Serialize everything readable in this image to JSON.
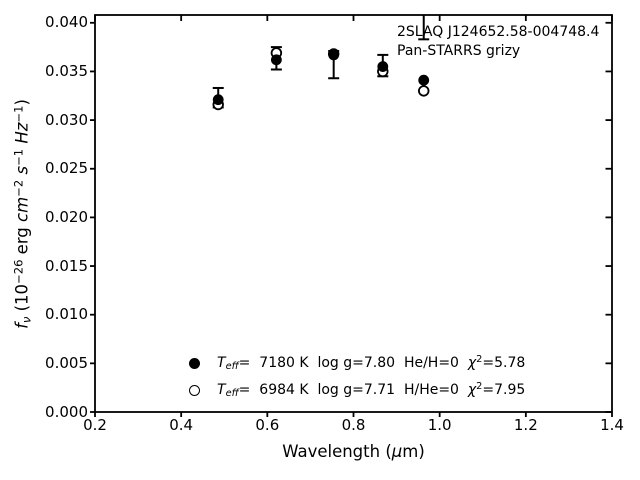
{
  "figure": {
    "background": "#ffffff",
    "foreground": "#000000"
  },
  "annotation": {
    "line1": "2SLAQ J124652.58-004748.4",
    "line2": "Pan-STARRS grizy"
  },
  "axes": {
    "xlabel_segments": [
      {
        "t": "Wavelength ("
      },
      {
        "t": "μ",
        "i": true
      },
      {
        "t": "m)"
      }
    ],
    "ylabel_segments": [
      {
        "t": "f",
        "i": true
      },
      {
        "t": "ν",
        "i": true,
        "pos": "sub"
      },
      {
        "t": " (10"
      },
      {
        "t": "−26",
        "pos": "sup"
      },
      {
        "t": " erg "
      },
      {
        "t": "cm",
        "i": true
      },
      {
        "t": "−2",
        "pos": "sup"
      },
      {
        "t": " "
      },
      {
        "t": "s",
        "i": true
      },
      {
        "t": "−1",
        "pos": "sup"
      },
      {
        "t": " "
      },
      {
        "t": "Hz",
        "i": true
      },
      {
        "t": "−1",
        "pos": "sup"
      },
      {
        "t": ")"
      }
    ]
  },
  "legend": {
    "entries": [
      {
        "marker": "filled-circle-icon",
        "segments": [
          {
            "t": "T",
            "i": true
          },
          {
            "t": "eff",
            "i": true,
            "pos": "sub"
          },
          {
            "t": "=  7180 K  log g=7.80  He/H=0  "
          },
          {
            "t": "χ",
            "i": true
          },
          {
            "t": "2",
            "pos": "sup"
          },
          {
            "t": "=5.78"
          }
        ]
      },
      {
        "marker": "open-circle-icon",
        "segments": [
          {
            "t": "T",
            "i": true
          },
          {
            "t": "eff",
            "i": true,
            "pos": "sub"
          },
          {
            "t": "=  6984 K  log g=7.71  H/He=0  "
          },
          {
            "t": "χ",
            "i": true
          },
          {
            "t": "2",
            "pos": "sup"
          },
          {
            "t": "=7.95"
          }
        ]
      }
    ]
  },
  "chart_data": {
    "type": "scatter",
    "annotation_lines": [
      "2SLAQ J124652.58-004748.4",
      "Pan-STARRS grizy"
    ],
    "xlabel": "Wavelength (μm)",
    "ylabel": "fν (10−26 erg cm−2 s−1 Hz−1)",
    "xlim": [
      0.2,
      1.4
    ],
    "ylim": [
      0.0,
      0.0408
    ],
    "grid": false,
    "legend_frame": false,
    "x_ticks": [
      0.2,
      0.4,
      0.6,
      0.8,
      1.0,
      1.2,
      1.4
    ],
    "x_tick_labels": [
      "0.2",
      "0.4",
      "0.6",
      "0.8",
      "1.0",
      "1.2",
      "1.4"
    ],
    "y_ticks": [
      0.0,
      0.005,
      0.01,
      0.015,
      0.02,
      0.025,
      0.03,
      0.035,
      0.04
    ],
    "y_tick_labels": [
      "0.000",
      "0.005",
      "0.010",
      "0.015",
      "0.020",
      "0.025",
      "0.030",
      "0.035",
      "0.040"
    ],
    "bands": [
      "g",
      "r",
      "i",
      "z",
      "y"
    ],
    "x": [
      0.486,
      0.621,
      0.754,
      0.868,
      0.963
    ],
    "observed_error_bars": [
      {
        "band": "g",
        "x": 0.486,
        "lo": 0.0313,
        "hi": 0.0333
      },
      {
        "band": "r",
        "x": 0.621,
        "lo": 0.0352,
        "hi": 0.0375
      },
      {
        "band": "i",
        "x": 0.754,
        "lo": 0.0343,
        "hi": 0.0371
      },
      {
        "band": "z",
        "x": 0.868,
        "lo": 0.0345,
        "hi": 0.0367
      },
      {
        "band": "y",
        "x": 0.963,
        "lo": 0.0383,
        "hi": 0.0412,
        "clipped_top": true
      }
    ],
    "series": [
      {
        "name": "Teff=  7180 K  log g=7.80  He/H=0  χ2=5.78",
        "marker": "filled-circle",
        "color": "#000000",
        "values": [
          0.0321,
          0.0362,
          0.0367,
          0.0355,
          0.0341
        ]
      },
      {
        "name": "Teff=  6984 K  log g=7.71  H/He=0  χ2=7.95",
        "marker": "open-circle",
        "color": "#000000",
        "values": [
          0.0316,
          0.0369,
          0.0368,
          0.035,
          0.033
        ]
      }
    ]
  }
}
